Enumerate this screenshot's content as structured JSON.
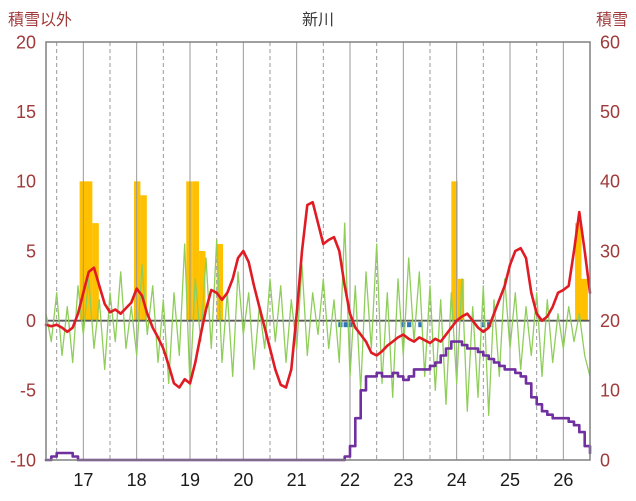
{
  "chart_data": {
    "type": "line",
    "title": "新川",
    "x_range": [
      16.3,
      26.5
    ],
    "x_ticks": [
      17,
      18,
      19,
      20,
      21,
      22,
      23,
      24,
      25,
      26
    ],
    "x_grid_solid": [
      17,
      18,
      19,
      20,
      21,
      22,
      23,
      24,
      25,
      26
    ],
    "x_grid_dashed": [
      16.5,
      17.5,
      18.5,
      19.5,
      20.5,
      21.5,
      22.5,
      23.5,
      24.5,
      25.5
    ],
    "left_axis": {
      "label": "積雪以外",
      "min": -10,
      "max": 20,
      "ticks": [
        20,
        15,
        10,
        5,
        0,
        -5,
        -10
      ]
    },
    "right_axis": {
      "label": "積雪",
      "min": 0,
      "max": 60,
      "ticks": [
        60,
        50,
        40,
        30,
        20,
        10,
        0
      ]
    },
    "x_start": 16.3,
    "x_step": 0.1,
    "series": [
      {
        "name": "green-line",
        "color": "#8fce5a",
        "axis": "left",
        "width": 1.3,
        "step": false,
        "values": [
          0.5,
          -1.5,
          2,
          -2.5,
          1,
          -3,
          2.5,
          -1,
          3,
          -2,
          1.5,
          -3.5,
          2,
          -1.5,
          3.5,
          -2,
          1,
          -2.5,
          4,
          -1,
          2.5,
          -3,
          1.5,
          -4.5,
          2,
          -2.5,
          5.5,
          -4.8,
          3,
          -1.5,
          4.5,
          -2,
          5.8,
          -3,
          2,
          -4,
          3.5,
          -1,
          2,
          -3.5,
          1,
          -2,
          3,
          -1.5,
          2.5,
          -3,
          1.5,
          -2,
          4,
          -2.5,
          2,
          -1,
          3,
          -2,
          1.5,
          -3,
          7,
          -4,
          2.5,
          -5,
          3.5,
          -2,
          5.5,
          -4.5,
          2,
          -5.5,
          3,
          -2.5,
          4.5,
          -1.5,
          3.5,
          -4,
          2.5,
          -5,
          1.5,
          -6,
          2,
          -4.5,
          3,
          -6.5,
          1,
          -5.5,
          2.5,
          -6.8,
          1.5,
          -4,
          3,
          -2,
          2,
          -3.5,
          1,
          -2.5,
          2,
          -4,
          1.5,
          -3,
          0.5,
          -2,
          1,
          -1.5,
          0.5,
          -2.5,
          -4
        ]
      },
      {
        "name": "red-line",
        "color": "#e01b24",
        "axis": "left",
        "width": 2.6,
        "step": false,
        "values": [
          -0.3,
          -0.4,
          -0.3,
          -0.5,
          -0.8,
          -0.5,
          0.5,
          2,
          3.5,
          3.8,
          2.5,
          1.2,
          0.6,
          0.8,
          0.5,
          0.9,
          1.3,
          2.3,
          1.8,
          0.5,
          -0.5,
          -1.2,
          -2,
          -3.2,
          -4.5,
          -4.8,
          -4.2,
          -4.5,
          -3,
          -1,
          0.8,
          2.2,
          2,
          1.5,
          2,
          3,
          4.5,
          5,
          4.2,
          2.5,
          1,
          -0.5,
          -2,
          -3.5,
          -4.6,
          -4.8,
          -3.5,
          0.5,
          5,
          8.3,
          8.5,
          7,
          5.5,
          5.8,
          6,
          5,
          2.5,
          0.5,
          -0.5,
          -1,
          -1.5,
          -2.3,
          -2.5,
          -2.2,
          -1.8,
          -1.5,
          -1.2,
          -1,
          -1.3,
          -1.5,
          -1.2,
          -1.4,
          -1.6,
          -1.3,
          -1.5,
          -1,
          -0.5,
          0,
          0.3,
          0.5,
          0,
          -0.5,
          -0.8,
          -0.5,
          0.5,
          1.5,
          2.5,
          4,
          5,
          5.2,
          4.5,
          2,
          0.5,
          0,
          0.3,
          1,
          2,
          2.2,
          2.5,
          5,
          7.8,
          5,
          2
        ]
      },
      {
        "name": "purple-line",
        "color": "#7030a0",
        "axis": "right",
        "width": 2.6,
        "step": true,
        "values": [
          0,
          0.5,
          1,
          1,
          1,
          0.5,
          0,
          0,
          0,
          0,
          0,
          0,
          0,
          0,
          0,
          0,
          0,
          0,
          0,
          0,
          0,
          0,
          0,
          0,
          0,
          0,
          0,
          0,
          0,
          0,
          0,
          0,
          0,
          0,
          0,
          0,
          0,
          0,
          0,
          0,
          0,
          0,
          0,
          0,
          0,
          0,
          0,
          0,
          0,
          0,
          0,
          0,
          0,
          0,
          0,
          0,
          0.5,
          2,
          6,
          10,
          12,
          12,
          12.5,
          12,
          12,
          12.5,
          12,
          11.5,
          12,
          13,
          13,
          13,
          13.5,
          14,
          15,
          16,
          17,
          17,
          16.5,
          16,
          16,
          15.5,
          15,
          14.5,
          14,
          13.5,
          13,
          13,
          12.5,
          12,
          11,
          9,
          8,
          7,
          6.5,
          6,
          6,
          6,
          5.5,
          5,
          4,
          2,
          1
        ]
      }
    ],
    "bars": [
      {
        "name": "orange-bars",
        "color": "#ffc000",
        "axis": "left",
        "width_days": 0.12,
        "below_zero": false,
        "points": [
          {
            "x": 16.93,
            "h": 10
          },
          {
            "x": 17.05,
            "h": 10
          },
          {
            "x": 17.17,
            "h": 7
          },
          {
            "x": 17.95,
            "h": 10
          },
          {
            "x": 18.07,
            "h": 9
          },
          {
            "x": 18.93,
            "h": 10
          },
          {
            "x": 19.05,
            "h": 10
          },
          {
            "x": 19.17,
            "h": 5
          },
          {
            "x": 19.5,
            "h": 5.5
          },
          {
            "x": 23.9,
            "h": 10
          },
          {
            "x": 24.02,
            "h": 3
          },
          {
            "x": 26.22,
            "h": 7
          },
          {
            "x": 26.34,
            "h": 3
          }
        ]
      },
      {
        "name": "blue-bars",
        "color": "#2e75b6",
        "axis": "left",
        "width_days": 0.08,
        "below_zero": true,
        "points": [
          {
            "x": 21.78,
            "h": 0.5
          },
          {
            "x": 21.88,
            "h": 0.5
          },
          {
            "x": 21.98,
            "h": 0.5
          },
          {
            "x": 22.95,
            "h": 0.5
          },
          {
            "x": 23.07,
            "h": 0.5
          },
          {
            "x": 23.28,
            "h": 0.5
          },
          {
            "x": 24.45,
            "h": 0.5
          },
          {
            "x": 24.57,
            "h": 0.5
          }
        ]
      }
    ],
    "colors": {
      "tick_label": "#a03a3a",
      "x_tick_label": "#1a1a1a",
      "grid": "#9a9a9a",
      "border": "#808080",
      "zero_line": "#595959"
    }
  }
}
